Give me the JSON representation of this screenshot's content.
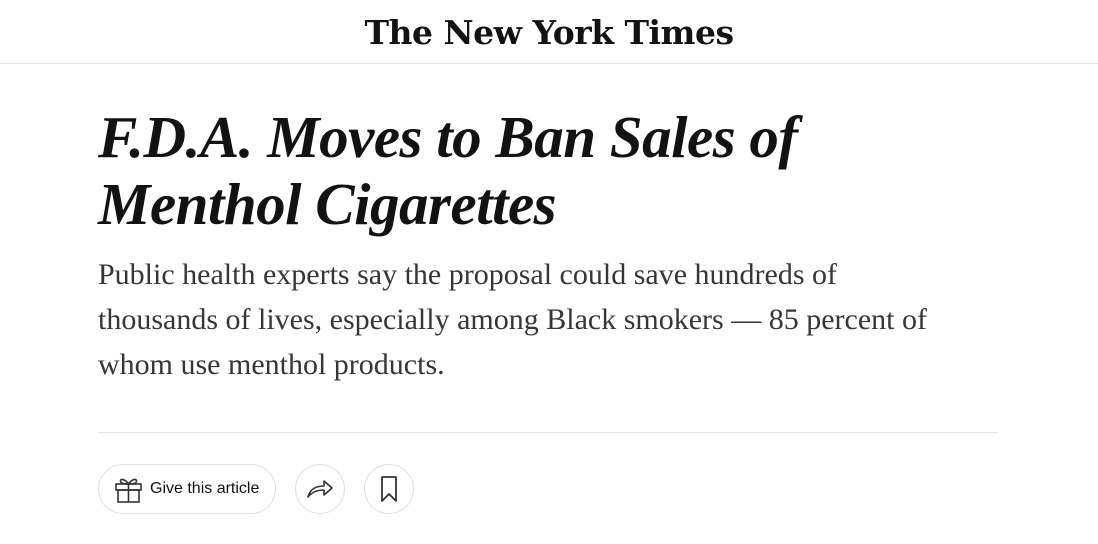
{
  "masthead": {
    "logo_text": "The New York Times"
  },
  "article": {
    "headline": "F.D.A. Moves to Ban Sales of Menthol Cigarettes",
    "summary": "Public health experts say the proposal could save hundreds of thousands of lives, especially among Black smokers — 85 percent of whom use menthol products."
  },
  "actions": {
    "gift_label": "Give this article",
    "gift_icon": "gift-icon",
    "share_icon": "share-arrow-icon",
    "save_icon": "bookmark-icon"
  }
}
